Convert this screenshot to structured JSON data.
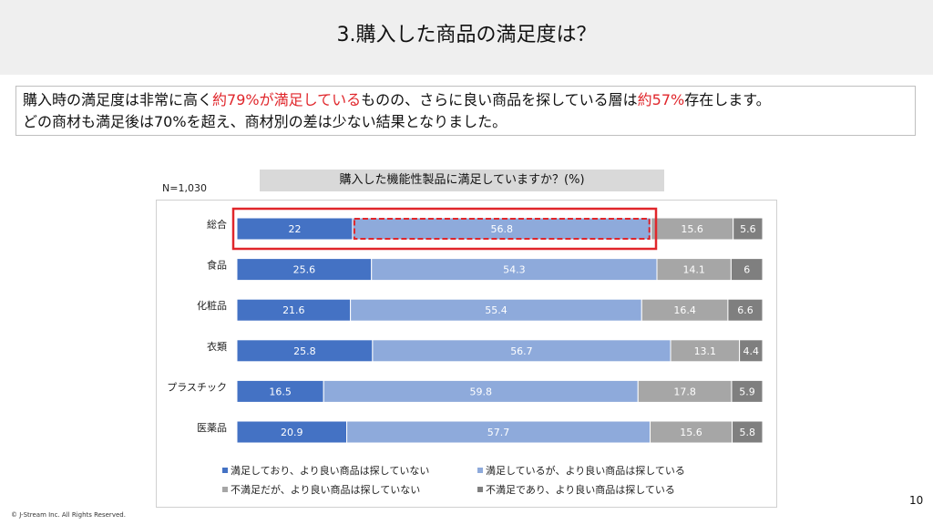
{
  "page": {
    "title": "3.購入した商品の満足度は？",
    "summary": {
      "line1": [
        {
          "text": "購入時の満足度は非常に高く",
          "highlight": false
        },
        {
          "text": "約79%が満足している",
          "highlight": true
        },
        {
          "text": "ものの、さらに良い商品を探している層は",
          "highlight": false
        },
        {
          "text": "約57%",
          "highlight": true
        },
        {
          "text": "存在します。",
          "highlight": false
        }
      ],
      "line2": "どの商材も満足後は70%を超え、商材別の差は少ない結果となりました。"
    },
    "sample_size": "N=1,030",
    "copyright": "© J-Stream Inc. All Rights Reserved.",
    "page_number": "10"
  },
  "colors": {
    "highlight": "#e0262b",
    "series": [
      "#4472c4",
      "#8eaadb",
      "#a6a6a6",
      "#7f7f7f"
    ],
    "annotation": "#e0262b"
  },
  "chart_data": {
    "type": "bar",
    "orientation": "horizontal",
    "stacked": true,
    "title": "購入した機能性製品に満足していますか？(%)",
    "categories": [
      "総合",
      "食品",
      "化粧品",
      "衣類",
      "プラスチック",
      "医薬品"
    ],
    "series": [
      {
        "name": "満足しており、より良い商品は探していない",
        "values": [
          22,
          25.6,
          21.6,
          25.8,
          16.5,
          20.9
        ]
      },
      {
        "name": "満足しているが、より良い商品は探している",
        "values": [
          56.8,
          54.3,
          55.4,
          56.7,
          59.8,
          57.7
        ]
      },
      {
        "name": "不満足だが、より良い商品は探していない",
        "values": [
          15.6,
          14.1,
          16.4,
          13.1,
          17.8,
          15.6
        ]
      },
      {
        "name": "不満足であり、より良い商品は探している",
        "values": [
          5.6,
          6,
          6.6,
          4.4,
          5.9,
          5.8
        ]
      }
    ],
    "xlim": [
      0,
      100
    ],
    "data_labels": true,
    "legend": "bottom",
    "grid": false,
    "annotations": [
      {
        "type": "solid-box",
        "category": "総合"
      },
      {
        "type": "dashed-box",
        "category": "総合",
        "series": "満足しているが、より良い商品は探している"
      }
    ]
  }
}
